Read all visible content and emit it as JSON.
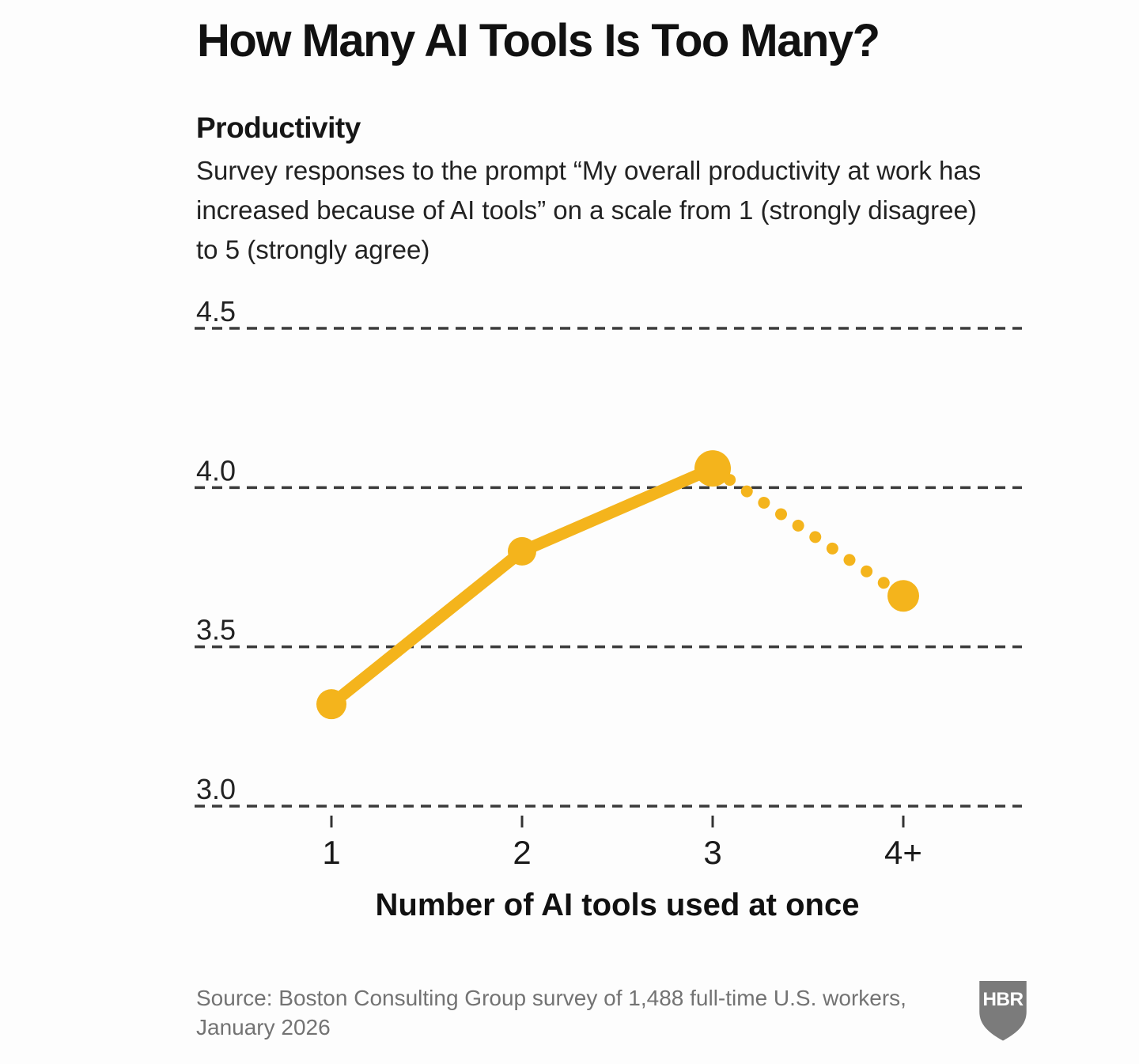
{
  "title": "How Many AI Tools Is Too Many?",
  "chart": {
    "section_label": "Productivity",
    "description_lines": [
      "Survey responses to the prompt “My overall productivity at work has",
      "increased because of AI tools” on a scale from 1 (strongly disagree)",
      "to 5 (strongly agree)"
    ],
    "x_axis_title": "Number of AI tools used at once"
  },
  "chart_data": {
    "type": "line",
    "title": "Productivity",
    "subtitle": "Survey responses to the prompt “My overall productivity at work has increased because of AI tools” on a scale from 1 (strongly disagree) to 5 (strongly agree)",
    "categories": [
      "1",
      "2",
      "3",
      "4+"
    ],
    "values": [
      3.32,
      3.8,
      4.06,
      3.66
    ],
    "xlabel": "Number of AI tools used at once",
    "ylabel": "",
    "ylim": [
      3.0,
      4.5
    ],
    "y_ticks": [
      "4.5",
      "4.0",
      "3.5",
      "3.0"
    ],
    "grid": "horizontal-dashed",
    "legend": "none",
    "dotted_from_index": 2,
    "segments": [
      {
        "from": "1",
        "to": "3",
        "style": "solid"
      },
      {
        "from": "3",
        "to": "4+",
        "style": "dotted"
      }
    ],
    "line_color": "#F4B41C",
    "grid_color": "#3b3b3b"
  },
  "footer": {
    "source_line1": "Source: Boston Consulting Group survey of 1,488 full-time U.S. workers,",
    "source_line2": "January 2026",
    "logo_text": "HBR"
  },
  "colors": {
    "accent": "#F4B41C",
    "text": "#1a1a1a",
    "muted": "#737373",
    "grid": "#3b3b3b",
    "logo_gray": "#7b7b7b"
  }
}
